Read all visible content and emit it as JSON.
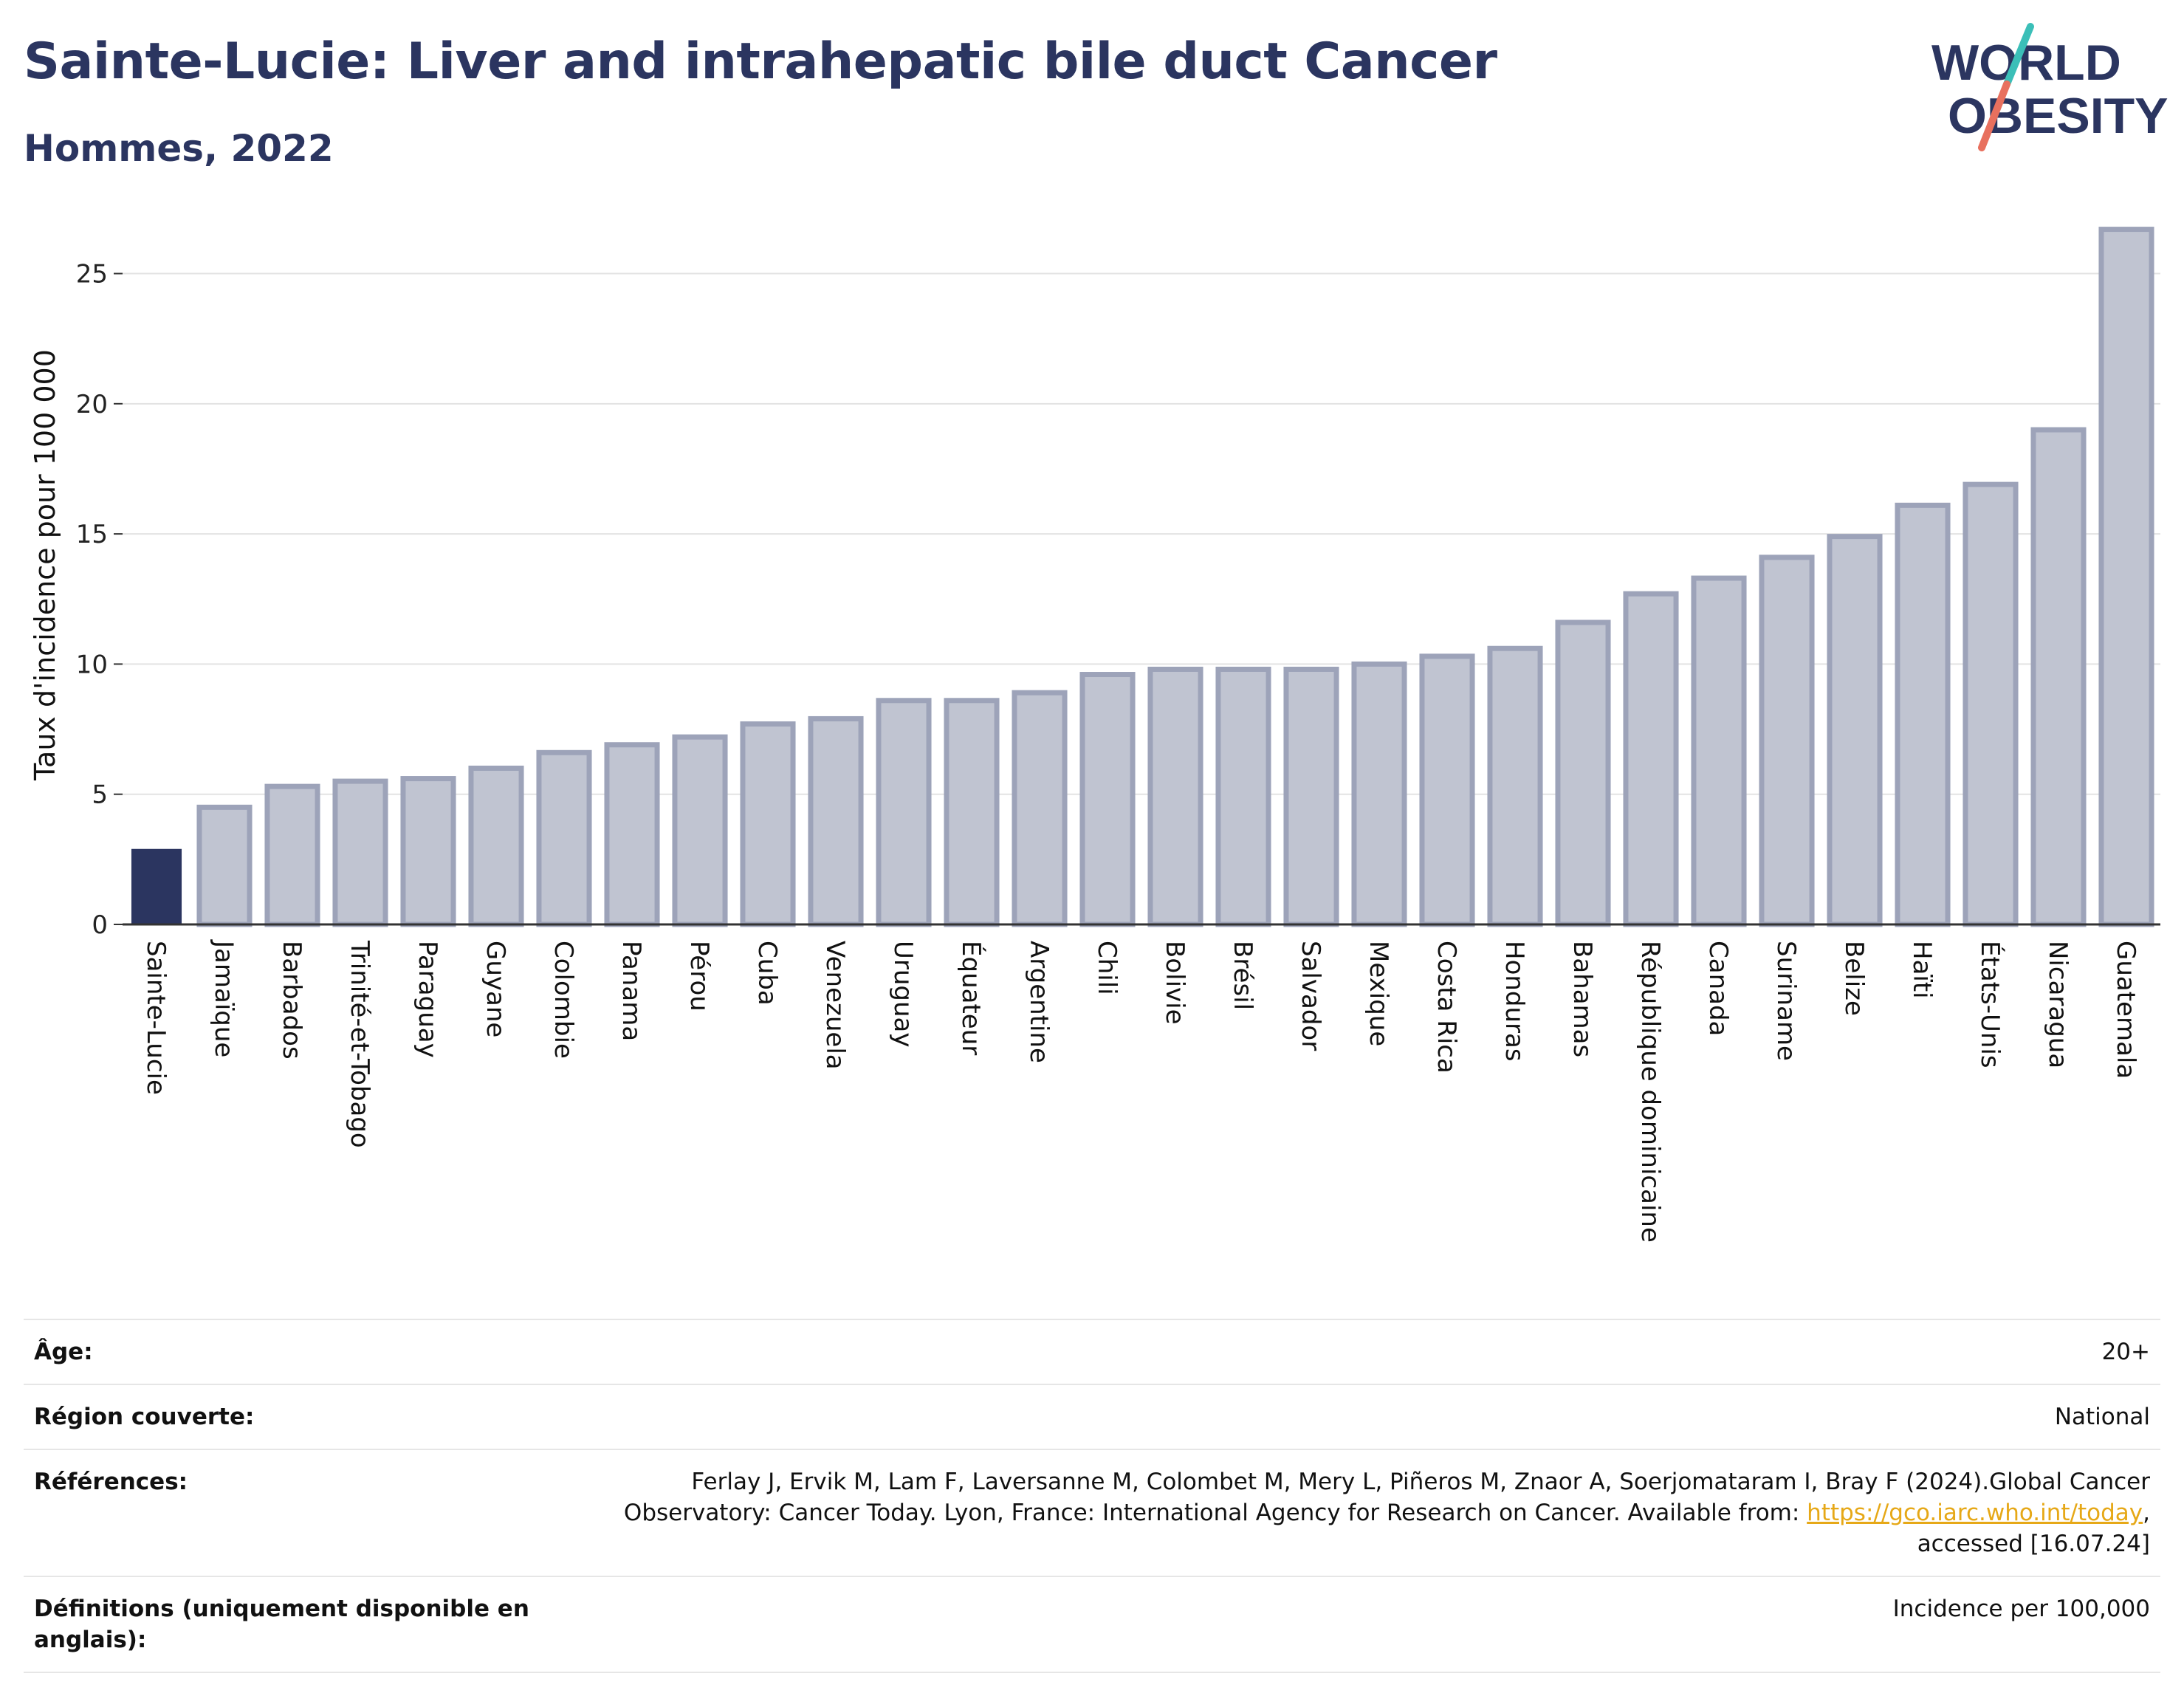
{
  "title": "Sainte-Lucie: Liver and intrahepatic bile duct Cancer",
  "subtitle": "Hommes, 2022",
  "logo": {
    "line1": "WORLD",
    "line2": "OBESITY"
  },
  "colors": {
    "title": "#2b3560",
    "highlight_bar": "#2b3560",
    "bar_fill": "#c0c4d1",
    "bar_stroke": "#9da3b9",
    "logo_text": "#2b3560",
    "logo_teal": "#3bbfb8",
    "logo_red": "#e8705e",
    "link": "#e6a817"
  },
  "chart_data": {
    "type": "bar",
    "title": "Sainte-Lucie: Liver and intrahepatic bile duct Cancer",
    "subtitle": "Hommes, 2022",
    "ylabel": "Taux d'incidence pour 100 000",
    "xlabel": "",
    "ylim": [
      0,
      27
    ],
    "yticks": [
      0,
      5,
      10,
      15,
      20,
      25
    ],
    "grid": true,
    "highlight": "Sainte-Lucie",
    "categories": [
      "Sainte-Lucie",
      "Jamaïque",
      "Barbados",
      "Trinité-et-Tobago",
      "Paraguay",
      "Guyane",
      "Colombie",
      "Panama",
      "Pérou",
      "Cuba",
      "Venezuela",
      "Uruguay",
      "Équateur",
      "Argentine",
      "Chili",
      "Bolivie",
      "Brésil",
      "Salvador",
      "Mexique",
      "Costa Rica",
      "Honduras",
      "Bahamas",
      "République dominicaine",
      "Canada",
      "Suriname",
      "Belize",
      "Haïti",
      "États-Unis",
      "Nicaragua",
      "Guatemala"
    ],
    "values": [
      2.9,
      4.5,
      5.3,
      5.5,
      5.6,
      6.0,
      6.6,
      6.9,
      7.2,
      7.7,
      7.9,
      8.6,
      8.6,
      8.9,
      9.6,
      9.8,
      9.8,
      9.8,
      10.0,
      10.3,
      10.6,
      11.6,
      12.7,
      13.3,
      14.1,
      14.9,
      16.1,
      16.9,
      19.0,
      26.7
    ]
  },
  "metadata": [
    {
      "label": "Âge:",
      "value": "20+"
    },
    {
      "label": "Région couverte:",
      "value": "National"
    },
    {
      "label": "Références:",
      "value_prefix": "Ferlay J, Ervik M, Lam F, Laversanne M, Colombet M, Mery L, Piñeros M, Znaor A, Soerjomataram I, Bray F (2024).Global Cancer Observatory: Cancer Today. Lyon, France: International Agency for Research on Cancer. Available from: ",
      "link": "https://gco.iarc.who.int/today",
      "value_suffix": ", accessed [16.07.24]"
    },
    {
      "label": "Définitions (uniquement disponible en anglais):",
      "value": "Incidence per 100,000"
    }
  ]
}
